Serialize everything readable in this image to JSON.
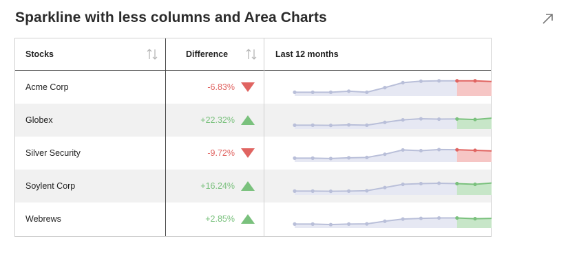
{
  "title": "Sparkline with less columns and Area Charts",
  "expand_icon": "expand-arrow-icon",
  "colors": {
    "negative": "#e06461",
    "positive": "#7ac17d",
    "spark_line": "#b9bfd9",
    "spark_fill": "#e6e8f3",
    "neg_fill": "#f6c6c5",
    "pos_fill": "#c7e6c8"
  },
  "columns": {
    "stocks": "Stocks",
    "difference": "Difference",
    "last12": "Last 12 months"
  },
  "rows": [
    {
      "name": "Acme Corp",
      "diff": "-6.83%",
      "trend": "down",
      "spark": [
        1.0,
        1.0,
        1.0,
        1.6,
        1.0,
        3.6,
        6.4,
        7.2,
        7.4,
        7.4,
        7.4,
        7.0
      ]
    },
    {
      "name": "Globex",
      "diff": "+22.32%",
      "trend": "up",
      "spark": [
        1.0,
        1.0,
        0.9,
        1.2,
        1.0,
        2.6,
        4.0,
        4.6,
        4.4,
        4.5,
        4.2,
        5.0
      ]
    },
    {
      "name": "Silver Security",
      "diff": "-9.72%",
      "trend": "down",
      "spark": [
        1.0,
        1.0,
        0.8,
        1.2,
        1.4,
        3.2,
        5.6,
        5.2,
        5.8,
        5.7,
        5.4,
        5.0
      ]
    },
    {
      "name": "Soylent Corp",
      "diff": "+16.24%",
      "trend": "up",
      "spark": [
        1.0,
        1.0,
        0.9,
        1.0,
        1.2,
        3.0,
        4.8,
        5.2,
        5.4,
        5.2,
        4.8,
        5.6
      ]
    },
    {
      "name": "Webrews",
      "diff": "+2.85%",
      "trend": "up",
      "spark": [
        1.0,
        1.0,
        0.7,
        1.0,
        1.1,
        2.6,
        3.8,
        4.2,
        4.4,
        4.4,
        4.0,
        4.2
      ]
    }
  ]
}
